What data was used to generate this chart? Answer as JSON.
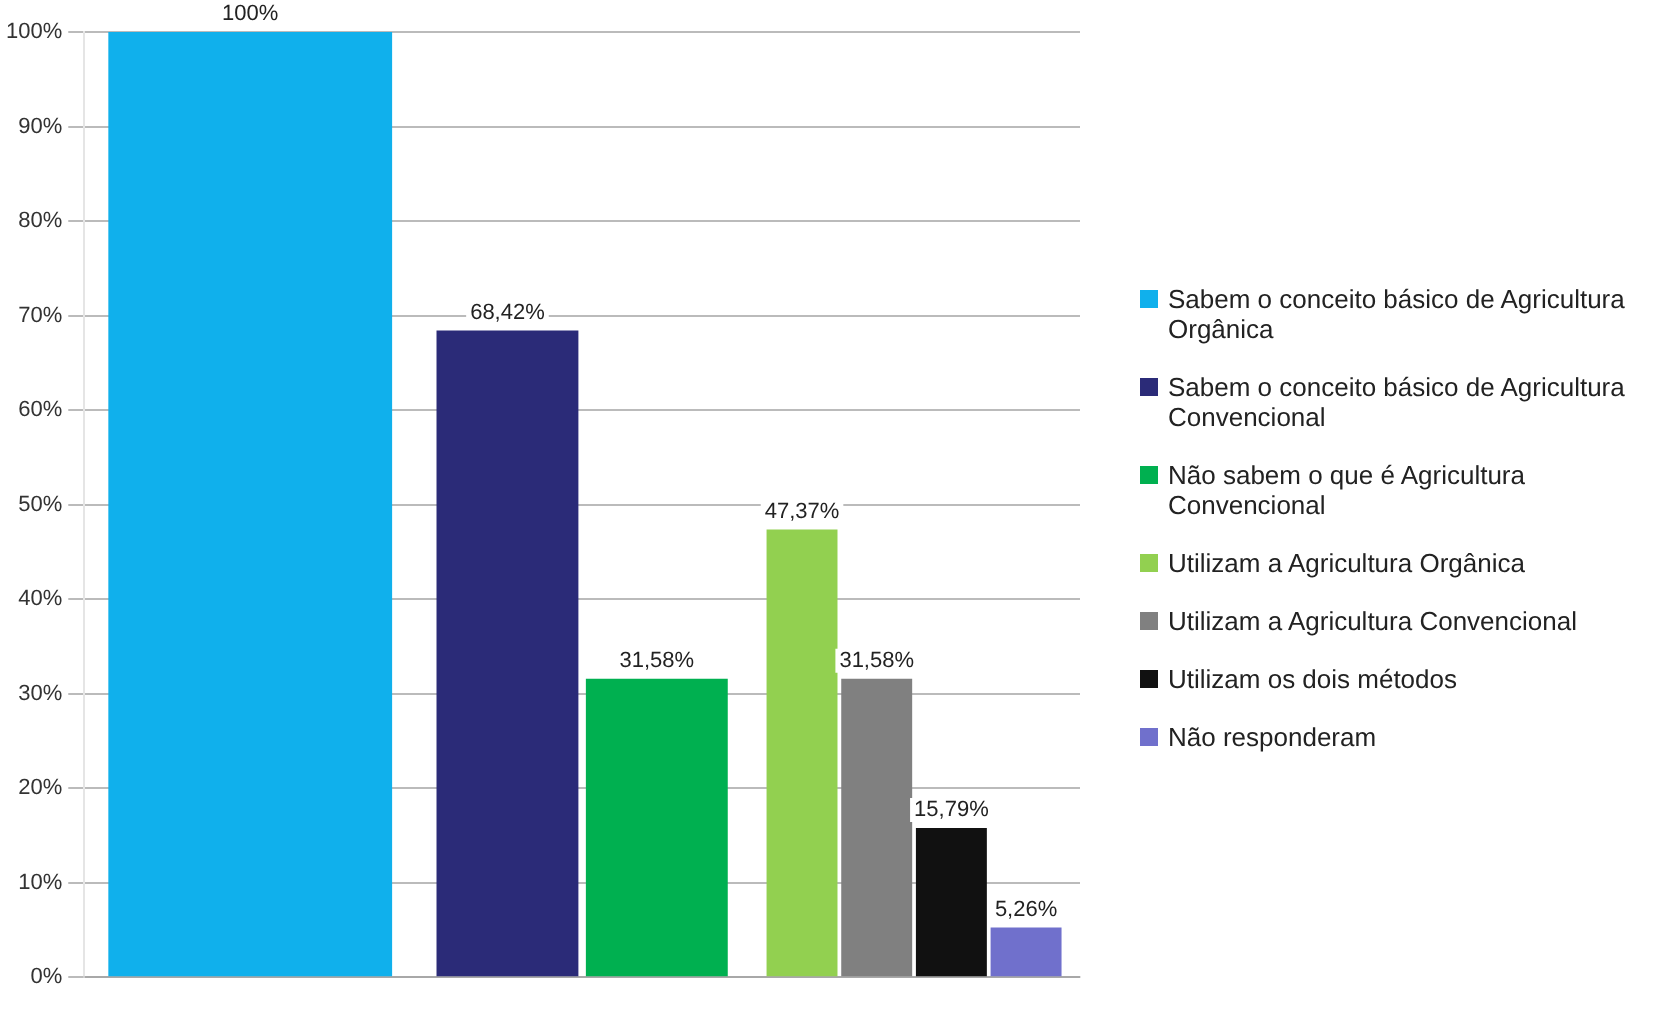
{
  "chart_data": {
    "type": "bar",
    "categories": [
      null,
      null,
      null
    ],
    "ylim": [
      0,
      100
    ],
    "yticks": [
      {
        "value": 0,
        "label": "0%"
      },
      {
        "value": 10,
        "label": "10%"
      },
      {
        "value": 20,
        "label": "20%"
      },
      {
        "value": 30,
        "label": "30%"
      },
      {
        "value": 40,
        "label": "40%"
      },
      {
        "value": 50,
        "label": "50%"
      },
      {
        "value": 60,
        "label": "60%"
      },
      {
        "value": 70,
        "label": "70%"
      },
      {
        "value": 80,
        "label": "80%"
      },
      {
        "value": 90,
        "label": "90%"
      },
      {
        "value": 100,
        "label": "100%"
      }
    ],
    "grid": "y",
    "legend": "right",
    "series": [
      {
        "name": "Sabem o conceito básico de Agricultura Orgânica",
        "color": "#10b0ec",
        "values": [
          100,
          null,
          null
        ],
        "value_labels": [
          "100%",
          null,
          null
        ]
      },
      {
        "name": "Sabem o conceito básico de Agricultura Convencional",
        "color": "#2b2b78",
        "values": [
          null,
          68.42,
          null
        ],
        "value_labels": [
          null,
          "68,42%",
          null
        ]
      },
      {
        "name": "Não sabem o que é Agricultura Convencional",
        "color": "#00b050",
        "values": [
          null,
          31.58,
          null
        ],
        "value_labels": [
          null,
          "31,58%",
          null
        ]
      },
      {
        "name": "Utilizam a Agricultura Orgânica",
        "color": "#92d050",
        "values": [
          null,
          null,
          47.37
        ],
        "value_labels": [
          null,
          null,
          "47,37%"
        ]
      },
      {
        "name": "Utilizam a Agricultura Convencional",
        "color": "#808080",
        "values": [
          null,
          null,
          31.58
        ],
        "value_labels": [
          null,
          null,
          "31,58%"
        ]
      },
      {
        "name": "Utilizam os dois métodos",
        "color": "#111111",
        "values": [
          null,
          null,
          15.79
        ],
        "value_labels": [
          null,
          null,
          "15,79%"
        ]
      },
      {
        "name": "Não responderam",
        "color": "#7070cc",
        "values": [
          null,
          null,
          5.26
        ],
        "value_labels": [
          null,
          null,
          "5,26%"
        ]
      }
    ]
  }
}
